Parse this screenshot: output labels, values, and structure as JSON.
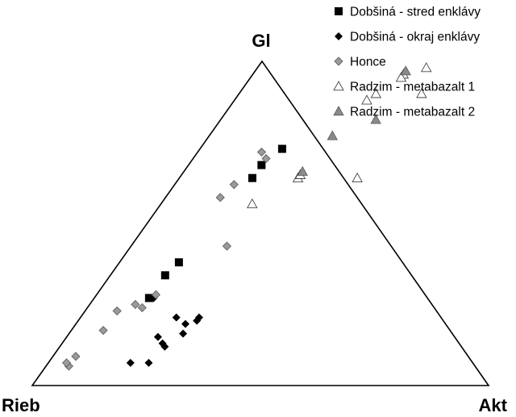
{
  "chart_data": {
    "type": "scatter",
    "subtype": "ternary",
    "apex_labels": {
      "top": "Gl",
      "left": "Rieb",
      "right": "Akt"
    },
    "legend_position": "top-right",
    "grid": false,
    "series": [
      {
        "name": "Dobšiná - stred enklávy",
        "marker": "square-filled",
        "color": "#000000",
        "points": [
          {
            "Gl": 0.73,
            "Akt": 0.18
          },
          {
            "Gl": 0.68,
            "Akt": 0.16
          },
          {
            "Gl": 0.64,
            "Akt": 0.16
          },
          {
            "Gl": 0.38,
            "Akt": 0.13
          },
          {
            "Gl": 0.34,
            "Akt": 0.12
          },
          {
            "Gl": 0.27,
            "Akt": 0.12
          }
        ]
      },
      {
        "name": "Dobšiná - okraj enklávy",
        "marker": "diamond-filled",
        "color": "#000000",
        "points": [
          {
            "Gl": 0.27,
            "Akt": 0.13
          },
          {
            "Gl": 0.21,
            "Akt": 0.21
          },
          {
            "Gl": 0.19,
            "Akt": 0.24
          },
          {
            "Gl": 0.2,
            "Akt": 0.26
          },
          {
            "Gl": 0.21,
            "Akt": 0.26
          },
          {
            "Gl": 0.16,
            "Akt": 0.25
          },
          {
            "Gl": 0.15,
            "Akt": 0.2
          },
          {
            "Gl": 0.13,
            "Akt": 0.22
          },
          {
            "Gl": 0.12,
            "Akt": 0.23
          },
          {
            "Gl": 0.07,
            "Akt": 0.18
          },
          {
            "Gl": 0.07,
            "Akt": 0.22
          }
        ]
      },
      {
        "name": "Honce",
        "marker": "diamond-gray",
        "color": "#999999",
        "points": [
          {
            "Gl": 0.72,
            "Akt": 0.14
          },
          {
            "Gl": 0.7,
            "Akt": 0.16
          },
          {
            "Gl": 0.62,
            "Akt": 0.13
          },
          {
            "Gl": 0.58,
            "Akt": 0.12
          },
          {
            "Gl": 0.43,
            "Akt": 0.21
          },
          {
            "Gl": 0.28,
            "Akt": 0.13
          },
          {
            "Gl": 0.25,
            "Akt": 0.1
          },
          {
            "Gl": 0.24,
            "Akt": 0.12
          },
          {
            "Gl": 0.23,
            "Akt": 0.07
          },
          {
            "Gl": 0.17,
            "Akt": 0.07
          },
          {
            "Gl": 0.09,
            "Akt": 0.05
          },
          {
            "Gl": 0.06,
            "Akt": 0.05
          },
          {
            "Gl": 0.07,
            "Akt": 0.04
          }
        ]
      },
      {
        "name": "Radzim - metabazalt 1",
        "marker": "triangle-open",
        "color": "#ffffff",
        "points": [
          {
            "Gl": 0.98,
            "Akt": 0.37
          },
          {
            "Gl": 0.96,
            "Akt": 0.33
          },
          {
            "Gl": 0.95,
            "Akt": 0.33
          },
          {
            "Gl": 0.9,
            "Akt": 0.3
          },
          {
            "Gl": 0.88,
            "Akt": 0.29
          },
          {
            "Gl": 0.9,
            "Akt": 0.4
          },
          {
            "Gl": 0.64,
            "Akt": 0.26
          },
          {
            "Gl": 0.64,
            "Akt": 0.39
          },
          {
            "Gl": 0.65,
            "Akt": 0.26
          },
          {
            "Gl": 0.56,
            "Akt": 0.2
          }
        ]
      },
      {
        "name": "Radzim - metabazalt 2",
        "marker": "triangle-gray",
        "color": "#888888",
        "points": [
          {
            "Gl": 0.97,
            "Akt": 0.33
          },
          {
            "Gl": 0.82,
            "Akt": 0.34
          },
          {
            "Gl": 0.77,
            "Akt": 0.27
          },
          {
            "Gl": 0.66,
            "Akt": 0.26
          }
        ]
      }
    ]
  }
}
